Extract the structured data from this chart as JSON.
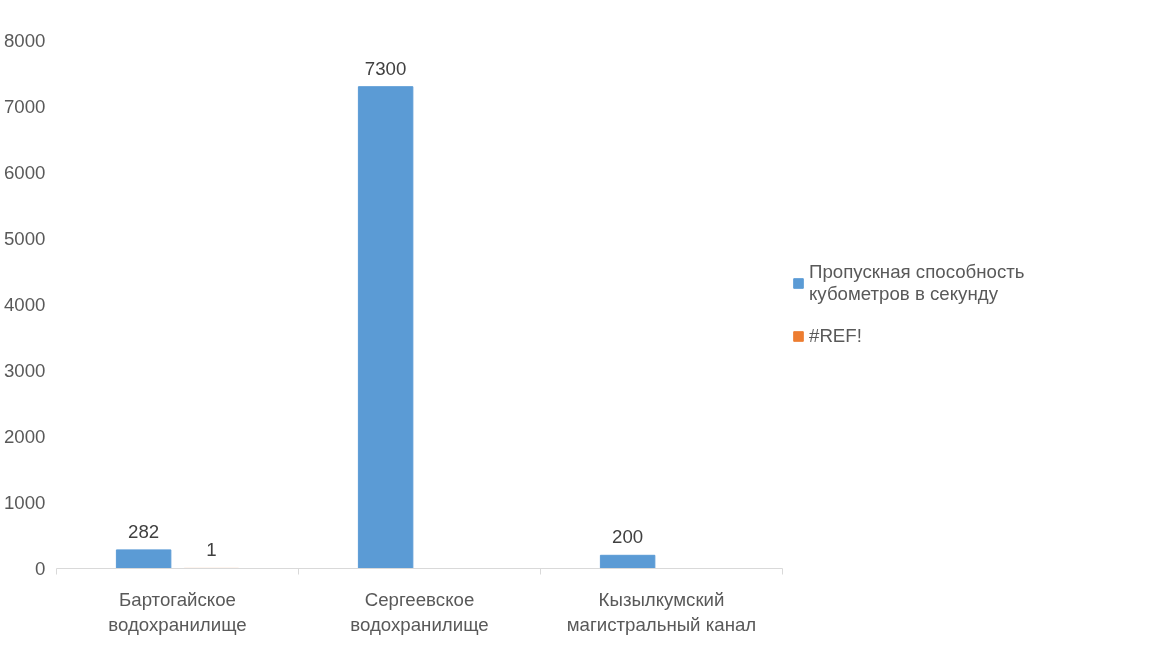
{
  "chart_data": {
    "type": "bar",
    "categories": [
      "Бартогайское водохранилище",
      "Сергеевское водохранилище",
      "Кызылкумский магистральный канал"
    ],
    "series": [
      {
        "name": "Пропускная способность кубометров в секунду",
        "color": "#5b9bd5",
        "values": [
          282,
          7300,
          200
        ]
      },
      {
        "name": "#REF!",
        "color": "#ed7d31",
        "values": [
          1,
          null,
          null
        ]
      }
    ],
    "ylim": [
      0,
      8000
    ],
    "yticks": [
      0,
      1000,
      2000,
      3000,
      4000,
      5000,
      6000,
      7000,
      8000
    ],
    "grid": false,
    "legend": "right",
    "data_labels": true
  }
}
